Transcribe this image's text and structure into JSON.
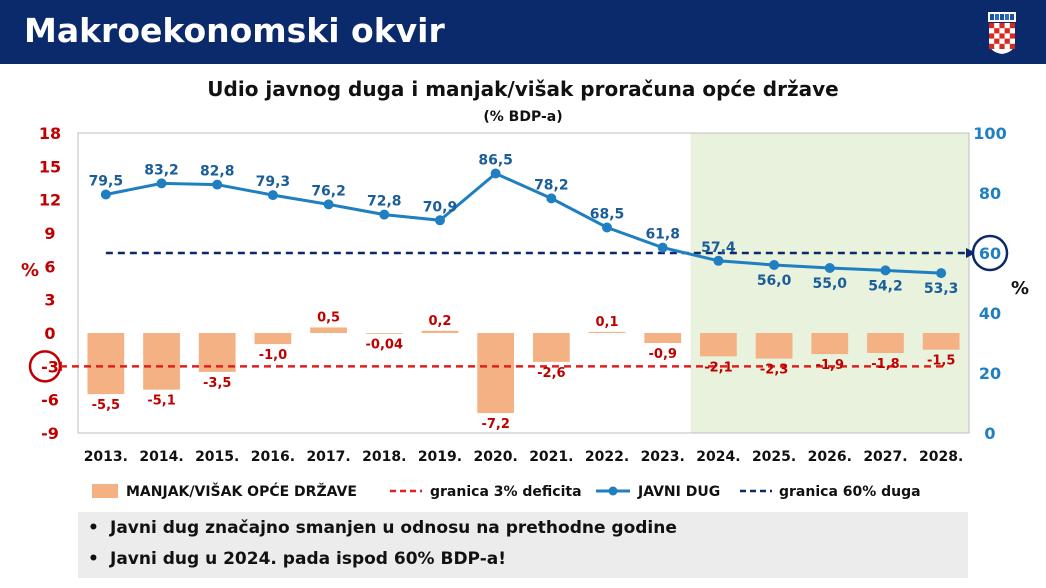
{
  "header": {
    "title": "Makroekonomski okvir",
    "emblem_icon": "croatian-coat-of-arms-icon"
  },
  "colors": {
    "header_bg": "#0b2a6b",
    "debt_line": "#1f7fc1",
    "bar_fill": "#f4b183",
    "deficit_limit": "#e02020",
    "debt_limit": "#0b2a6b",
    "forecast_bg": "#e8f2dc",
    "left_axis": "#c00000",
    "right_axis": "#1f7fc1"
  },
  "chart_data": {
    "type": "bar+line",
    "title": "Udio javnog duga i manjak/višak proračuna opće države",
    "subtitle": "(% BDP-a)",
    "categories": [
      "2013.",
      "2014.",
      "2015.",
      "2016.",
      "2017.",
      "2018.",
      "2019.",
      "2020.",
      "2021.",
      "2022.",
      "2023.",
      "2024.",
      "2025.",
      "2026.",
      "2027.",
      "2028."
    ],
    "left_axis": {
      "label": "%",
      "ylim": [
        -9,
        18
      ],
      "ticks": [
        "18",
        "15",
        "12",
        "9",
        "6",
        "3",
        "0",
        "-3",
        "-6",
        "-9"
      ],
      "highlight": "-3"
    },
    "right_axis": {
      "label": "%",
      "ylim": [
        0,
        100
      ],
      "ticks": [
        "100",
        "80",
        "60",
        "40",
        "20",
        "0"
      ],
      "highlight": "60"
    },
    "series": [
      {
        "name": "MANJAK/VIŠAK OPĆE DRŽAVE",
        "type": "bar",
        "axis": "left",
        "values": [
          -5.5,
          -5.1,
          -3.5,
          -1.0,
          0.5,
          -0.04,
          0.2,
          -7.2,
          -2.6,
          0.1,
          -0.9,
          -2.1,
          -2.3,
          -1.9,
          -1.8,
          -1.5
        ],
        "labels": [
          "-5,5",
          "-5,1",
          "-3,5",
          "-1,0",
          "0,5",
          "-0,04",
          "0,2",
          "-7,2",
          "-2,6",
          "0,1",
          "-0,9",
          "-2,1",
          "-2,3",
          "-1,9",
          "-1,8",
          "-1,5"
        ]
      },
      {
        "name": "JAVNI DUG",
        "type": "line",
        "axis": "right",
        "values": [
          79.5,
          83.2,
          82.8,
          79.3,
          76.2,
          72.8,
          70.9,
          86.5,
          78.2,
          68.5,
          61.8,
          57.4,
          56.0,
          55.0,
          54.2,
          53.3
        ],
        "labels": [
          "79,5",
          "83,2",
          "82,8",
          "79,3",
          "76,2",
          "72,8",
          "70,9",
          "86,5",
          "78,2",
          "68,5",
          "61,8",
          "57,4",
          "56,0",
          "55,0",
          "54,2",
          "53,3"
        ]
      },
      {
        "name": "granica 3% deficita",
        "type": "hline",
        "axis": "left",
        "value": -3
      },
      {
        "name": "granica 60% duga",
        "type": "hline",
        "axis": "right",
        "value": 60
      }
    ],
    "forecast_from": "2024.",
    "legend_position": "bottom"
  },
  "notes": [
    "Javni dug značajno smanjen u odnosu na prethodne godine",
    "Javni dug u 2024. pada ispod 60% BDP-a!"
  ]
}
